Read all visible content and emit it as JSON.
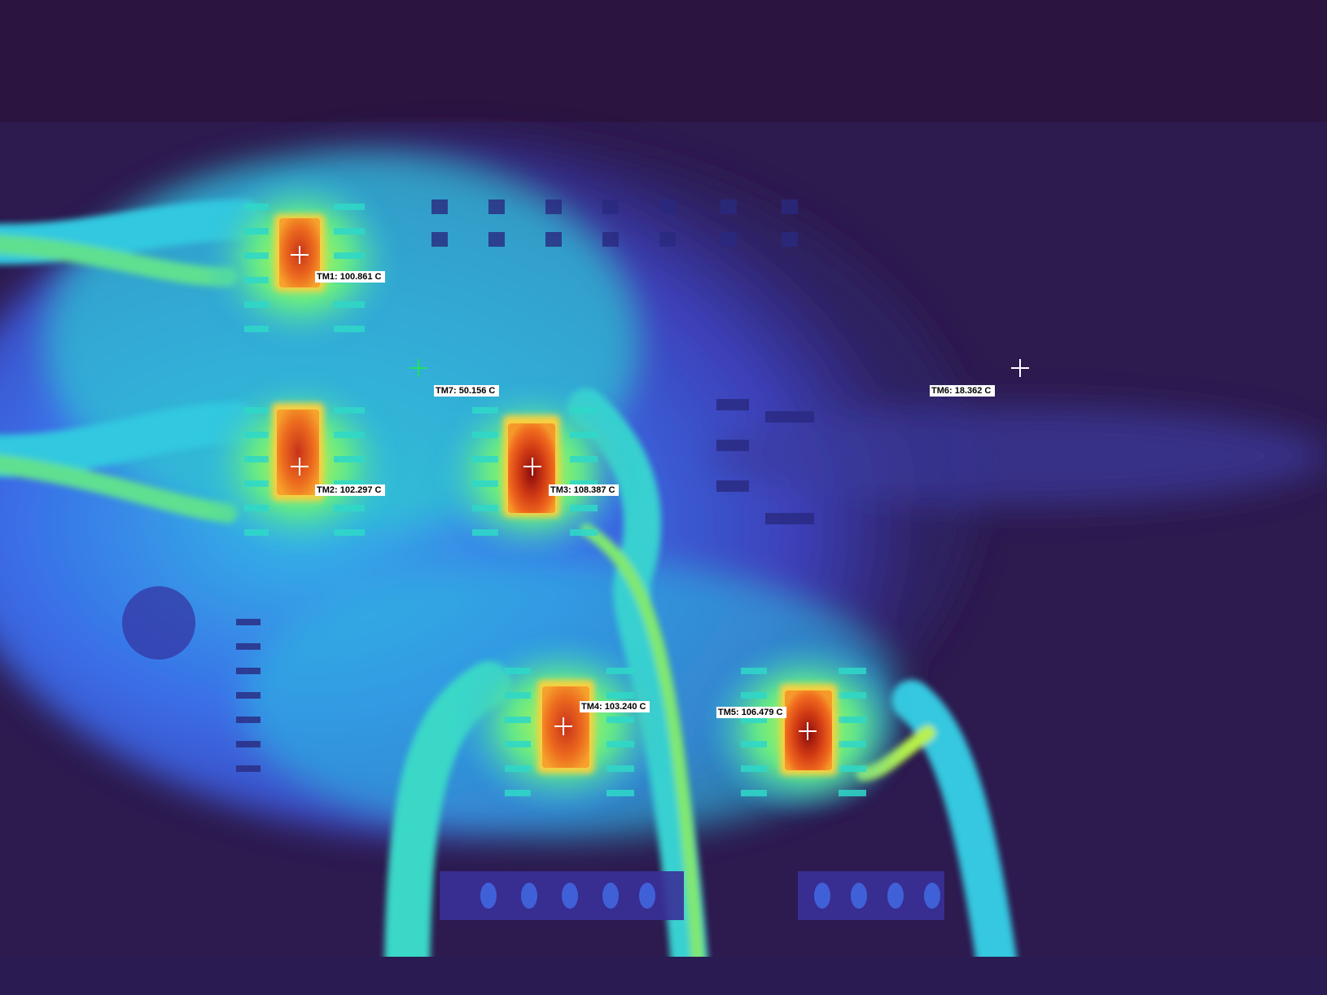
{
  "measurements": [
    {
      "id": "TM1",
      "label": "TM1: 100.861 C",
      "temperature_c": 100.861
    },
    {
      "id": "TM2",
      "label": "TM2: 102.297 C",
      "temperature_c": 102.297
    },
    {
      "id": "TM3",
      "label": "TM3: 108.387 C",
      "temperature_c": 108.387
    },
    {
      "id": "TM4",
      "label": "TM4: 103.240 C",
      "temperature_c": 103.24
    },
    {
      "id": "TM5",
      "label": "TM5: 106.479 C",
      "temperature_c": 106.479
    },
    {
      "id": "TM6",
      "label": "TM6: 18.362 C",
      "temperature_c": 18.362
    },
    {
      "id": "TM7",
      "label": "TM7: 50.156 C",
      "temperature_c": 50.156
    }
  ],
  "colors": {
    "background_cold": "#2b1440",
    "cool": "#3a4fe0",
    "mid": "#2fd0c8",
    "warm": "#b6f24a",
    "hot": "#e8501a",
    "hottest": "#7a0a0a",
    "label_bg": "#ffffff",
    "active_marker": "#22e060"
  },
  "palette_name": "thermal-iron-rainbow"
}
